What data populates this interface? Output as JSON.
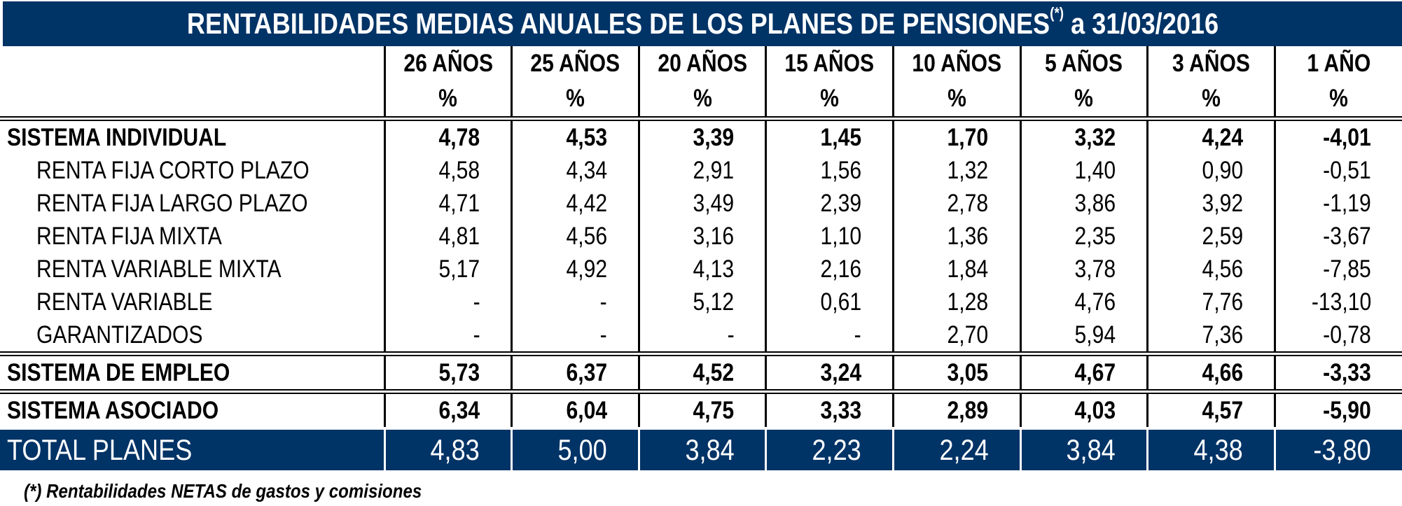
{
  "title": {
    "text": "RENTABILIDADES MEDIAS ANUALES DE LOS PLANES DE PENSIONES",
    "marker": "(*)",
    "date": "a 31/03/2016"
  },
  "accent_color": "#003366",
  "columns": [
    {
      "label": "26 AÑOS",
      "unit": "%"
    },
    {
      "label": "25 AÑOS",
      "unit": "%"
    },
    {
      "label": "20 AÑOS",
      "unit": "%"
    },
    {
      "label": "15 AÑOS",
      "unit": "%"
    },
    {
      "label": "10 AÑOS",
      "unit": "%"
    },
    {
      "label": "5 AÑOS",
      "unit": "%"
    },
    {
      "label": "3 AÑOS",
      "unit": "%"
    },
    {
      "label": "1 AÑO",
      "unit": "%"
    }
  ],
  "rows": [
    {
      "label": "SISTEMA INDIVIDUAL",
      "type": "group",
      "values": [
        "4,78",
        "4,53",
        "3,39",
        "1,45",
        "1,70",
        "3,32",
        "4,24",
        "-4,01"
      ]
    },
    {
      "label": "RENTA FIJA CORTO PLAZO",
      "type": "sub",
      "values": [
        "4,58",
        "4,34",
        "2,91",
        "1,56",
        "1,32",
        "1,40",
        "0,90",
        "-0,51"
      ]
    },
    {
      "label": "RENTA FIJA LARGO PLAZO",
      "type": "sub",
      "values": [
        "4,71",
        "4,42",
        "3,49",
        "2,39",
        "2,78",
        "3,86",
        "3,92",
        "-1,19"
      ]
    },
    {
      "label": "RENTA FIJA MIXTA",
      "type": "sub",
      "values": [
        "4,81",
        "4,56",
        "3,16",
        "1,10",
        "1,36",
        "2,35",
        "2,59",
        "-3,67"
      ]
    },
    {
      "label": "RENTA VARIABLE MIXTA",
      "type": "sub",
      "values": [
        "5,17",
        "4,92",
        "4,13",
        "2,16",
        "1,84",
        "3,78",
        "4,56",
        "-7,85"
      ]
    },
    {
      "label": "RENTA VARIABLE",
      "type": "sub",
      "values": [
        "-",
        "-",
        "5,12",
        "0,61",
        "1,28",
        "4,76",
        "7,76",
        "-13,10"
      ]
    },
    {
      "label": "GARANTIZADOS",
      "type": "sub",
      "values": [
        "-",
        "-",
        "-",
        "-",
        "2,70",
        "5,94",
        "7,36",
        "-0,78"
      ]
    },
    {
      "label": "SISTEMA DE EMPLEO",
      "type": "group",
      "values": [
        "5,73",
        "6,37",
        "4,52",
        "3,24",
        "3,05",
        "4,67",
        "4,66",
        "-3,33"
      ]
    },
    {
      "label": "SISTEMA ASOCIADO",
      "type": "group",
      "values": [
        "6,34",
        "6,04",
        "4,75",
        "3,33",
        "2,89",
        "4,03",
        "4,57",
        "-5,90"
      ]
    }
  ],
  "total": {
    "label": "TOTAL PLANES",
    "values": [
      "4,83",
      "5,00",
      "3,84",
      "2,23",
      "2,24",
      "3,84",
      "4,38",
      "-3,80"
    ]
  },
  "footnote": "(*) Rentabilidades NETAS de gastos y comisiones"
}
